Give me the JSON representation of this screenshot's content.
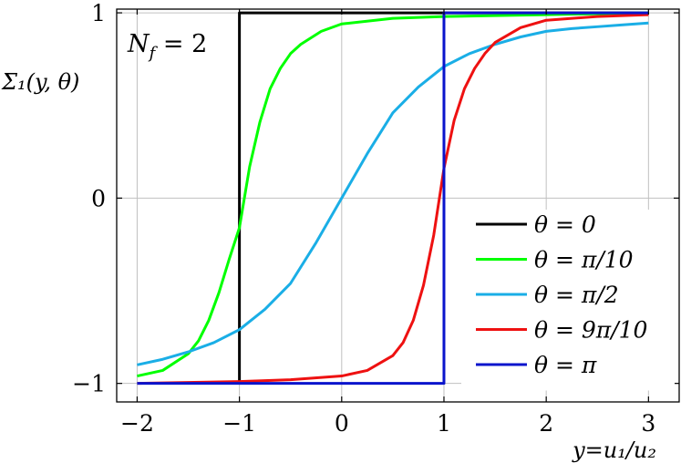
{
  "chart_data": {
    "type": "line",
    "xlabel": "y=u₁/u₂",
    "ylabel": "Σ₁(y, θ)",
    "annotation": "N_f = 2",
    "annotation_parts": {
      "main": "N",
      "sub": "f",
      "rest": " = 2"
    },
    "xlim": [
      -2.2,
      3.3
    ],
    "ylim": [
      -1.1,
      1.02
    ],
    "x_ticks": [
      -2,
      -1,
      0,
      1,
      2,
      3
    ],
    "x_tick_labels": [
      "−2",
      "−1",
      "0",
      "1",
      "2",
      "3"
    ],
    "y_ticks": [
      -1,
      0,
      1
    ],
    "y_tick_labels": [
      "−1",
      "0",
      "1"
    ],
    "grid": true,
    "legend_position": "bottom-right",
    "series": [
      {
        "name": "θ = 0",
        "color": "#000000",
        "x": [
          -1.0,
          -1.0,
          1.0,
          3.0
        ],
        "y": [
          -1.0,
          1.0,
          1.0,
          1.0
        ]
      },
      {
        "name": "θ = π/10",
        "color": "#00ff00",
        "x": [
          -2.0,
          -1.75,
          -1.5,
          -1.4,
          -1.3,
          -1.2,
          -1.1,
          -1.0,
          -0.9,
          -0.8,
          -0.7,
          -0.6,
          -0.5,
          -0.4,
          -0.2,
          0.0,
          0.5,
          1.0,
          2.0,
          3.0
        ],
        "y": [
          -0.96,
          -0.93,
          -0.84,
          -0.77,
          -0.66,
          -0.51,
          -0.33,
          -0.16,
          0.17,
          0.41,
          0.59,
          0.7,
          0.78,
          0.83,
          0.9,
          0.94,
          0.97,
          0.98,
          0.99,
          1.0
        ]
      },
      {
        "name": "θ = π/2",
        "color": "#1aaee6",
        "x": [
          -2.0,
          -1.75,
          -1.5,
          -1.25,
          -1.0,
          -0.75,
          -0.5,
          -0.25,
          0.0,
          0.25,
          0.5,
          0.75,
          1.0,
          1.25,
          1.5,
          1.75,
          2.0,
          2.25,
          2.5,
          2.75,
          3.0
        ],
        "y": [
          -0.9,
          -0.87,
          -0.83,
          -0.78,
          -0.71,
          -0.6,
          -0.46,
          -0.24,
          0.0,
          0.24,
          0.46,
          0.6,
          0.71,
          0.78,
          0.83,
          0.87,
          0.9,
          0.915,
          0.925,
          0.935,
          0.945
        ]
      },
      {
        "name": "θ = 9π/10",
        "color": "#ee1111",
        "x": [
          -2.0,
          -1.0,
          -0.5,
          0.0,
          0.25,
          0.5,
          0.6,
          0.7,
          0.8,
          0.9,
          1.0,
          1.1,
          1.2,
          1.3,
          1.4,
          1.5,
          1.75,
          2.0,
          2.5,
          3.0
        ],
        "y": [
          -1.0,
          -0.99,
          -0.98,
          -0.96,
          -0.93,
          -0.85,
          -0.78,
          -0.66,
          -0.47,
          -0.2,
          0.16,
          0.42,
          0.59,
          0.7,
          0.78,
          0.84,
          0.92,
          0.96,
          0.98,
          0.99
        ]
      },
      {
        "name": "θ = π",
        "color": "#0a14cc",
        "x": [
          -2.0,
          1.0,
          1.0,
          3.0
        ],
        "y": [
          -1.0,
          -1.0,
          1.0,
          1.0
        ]
      }
    ]
  }
}
